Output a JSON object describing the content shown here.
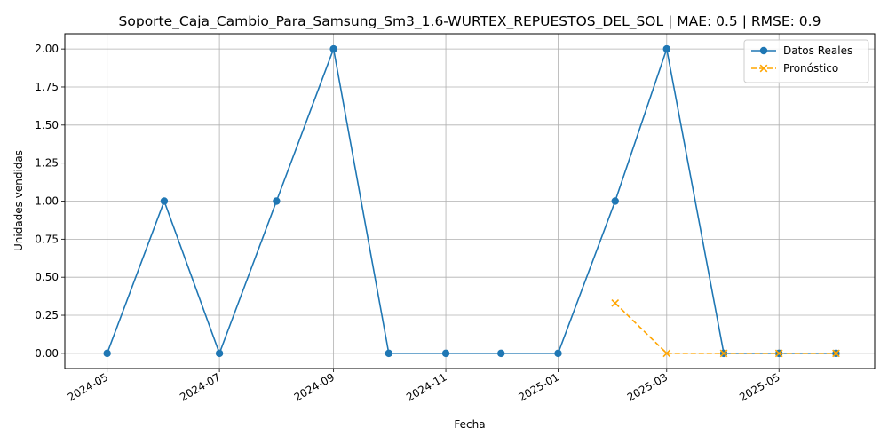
{
  "chart_data": {
    "type": "line",
    "title": "Soporte_Caja_Cambio_Para_Samsung_Sm3_1.6-WURTEX_REPUESTOS_DEL_SOL | MAE: 0.5 | RMSE: 0.9",
    "xlabel": "Fecha",
    "ylabel": "Unidades vendidas",
    "ylim": [
      -0.1,
      2.1
    ],
    "yticks": [
      0.0,
      0.25,
      0.5,
      0.75,
      1.0,
      1.25,
      1.5,
      1.75,
      2.0
    ],
    "ytick_labels": [
      "0.00",
      "0.25",
      "0.50",
      "0.75",
      "1.00",
      "1.25",
      "1.50",
      "1.75",
      "2.00"
    ],
    "xlim": [
      "2024-04-08",
      "2025-06-22"
    ],
    "xticks": [
      "2024-05-01",
      "2024-07-01",
      "2024-09-01",
      "2024-11-01",
      "2025-01-01",
      "2025-03-01",
      "2025-05-01"
    ],
    "xtick_labels": [
      "2024-05",
      "2024-07",
      "2024-09",
      "2024-11",
      "2025-01",
      "2025-03",
      "2025-05"
    ],
    "grid": true,
    "legend_position": "top-right",
    "series": [
      {
        "name": "Datos Reales",
        "color": "#1f77b4",
        "marker": "circle",
        "linestyle": "solid",
        "x": [
          "2024-05-01",
          "2024-06-01",
          "2024-07-01",
          "2024-08-01",
          "2024-09-01",
          "2024-10-01",
          "2024-11-01",
          "2024-12-01",
          "2025-01-01",
          "2025-02-01",
          "2025-03-01",
          "2025-04-01",
          "2025-05-01",
          "2025-06-01"
        ],
        "y": [
          0,
          1,
          0,
          1,
          2,
          0,
          0,
          0,
          0,
          1,
          2,
          0,
          0,
          0
        ]
      },
      {
        "name": "Pronóstico",
        "color": "#ffa500",
        "marker": "x",
        "linestyle": "dashed",
        "x": [
          "2025-02-01",
          "2025-03-01",
          "2025-04-01",
          "2025-05-01",
          "2025-06-01"
        ],
        "y": [
          0.33,
          0,
          0,
          0,
          0
        ]
      }
    ]
  }
}
